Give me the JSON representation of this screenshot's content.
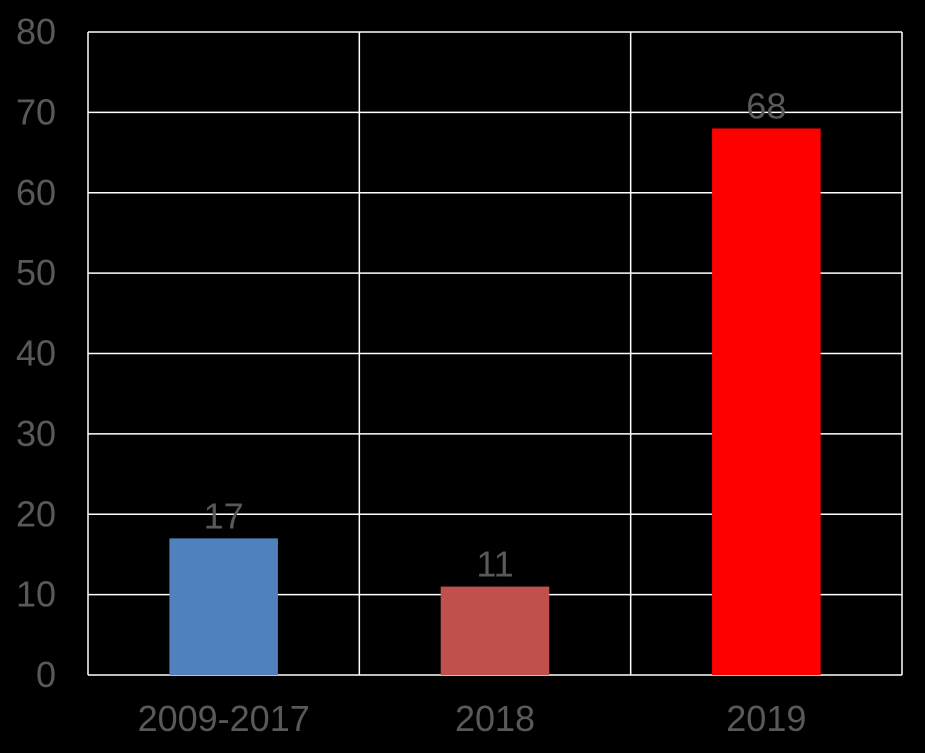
{
  "chart_data": {
    "type": "bar",
    "title": "",
    "xlabel": "",
    "ylabel": "",
    "categories": [
      "2009-2017",
      "2018",
      "2019"
    ],
    "values": [
      17,
      11,
      68
    ],
    "data_labels": [
      "17",
      "11",
      "68"
    ],
    "bar_colors": [
      "#4f81bd",
      "#c0504d",
      "#ff0000"
    ],
    "ylim": [
      0,
      80
    ],
    "yticks": [
      0,
      10,
      20,
      30,
      40,
      50,
      60,
      70,
      80
    ],
    "ytick_labels": [
      "0",
      "10",
      "20",
      "30",
      "40",
      "50",
      "60",
      "70",
      "80"
    ],
    "grid": {
      "horizontal": true,
      "vertical": true
    },
    "legend": "none",
    "colors": {
      "background": "#000000",
      "grid": "#ffffff",
      "text": "#595959"
    }
  }
}
